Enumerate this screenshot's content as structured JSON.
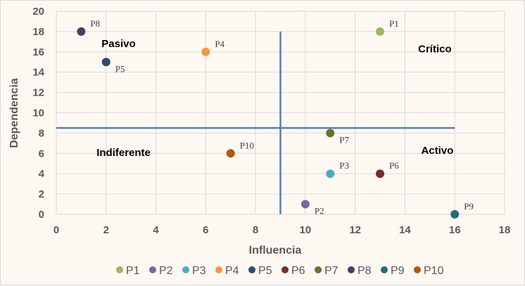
{
  "chart_data": {
    "type": "scatter",
    "title": "",
    "xlabel": "Influencia",
    "ylabel": "Dependencia",
    "xlim": [
      0,
      18
    ],
    "ylim": [
      0,
      20
    ],
    "xticks": [
      0,
      2,
      4,
      6,
      8,
      10,
      12,
      14,
      16,
      18
    ],
    "yticks": [
      0,
      2,
      4,
      6,
      8,
      10,
      12,
      14,
      16,
      18,
      20
    ],
    "grid": true,
    "legend_position": "bottom",
    "series": [
      {
        "name": "P1",
        "x": 13,
        "y": 18,
        "color": "#9bbb59"
      },
      {
        "name": "P2",
        "x": 10,
        "y": 1,
        "color": "#8064a2"
      },
      {
        "name": "P3",
        "x": 11,
        "y": 4,
        "color": "#4bacc6"
      },
      {
        "name": "P4",
        "x": 6,
        "y": 16,
        "color": "#f79646"
      },
      {
        "name": "P5",
        "x": 2,
        "y": 15,
        "color": "#2c4d75"
      },
      {
        "name": "P6",
        "x": 13,
        "y": 4,
        "color": "#772c2a"
      },
      {
        "name": "P7",
        "x": 11,
        "y": 8,
        "color": "#5f7530"
      },
      {
        "name": "P8",
        "x": 1,
        "y": 18,
        "color": "#4d3b62"
      },
      {
        "name": "P9",
        "x": 16,
        "y": 0,
        "color": "#276a7c"
      },
      {
        "name": "P10",
        "x": 7,
        "y": 6,
        "color": "#b65708"
      }
    ],
    "reference_lines": [
      {
        "orientation": "vertical",
        "x": 9,
        "from": 0,
        "to": 18,
        "color": "#4f81bd"
      },
      {
        "orientation": "horizontal",
        "y": 8.5,
        "from": 0,
        "to": 16,
        "color": "#4f81bd"
      }
    ],
    "annotations": [
      {
        "text": "Pasivo",
        "x": 2.5,
        "y": 16.8
      },
      {
        "text": "Crítico",
        "x": 15.2,
        "y": 16.3
      },
      {
        "text": "Indiferente",
        "x": 2.7,
        "y": 6.1
      },
      {
        "text": "Activo",
        "x": 15.3,
        "y": 6.3
      }
    ]
  }
}
